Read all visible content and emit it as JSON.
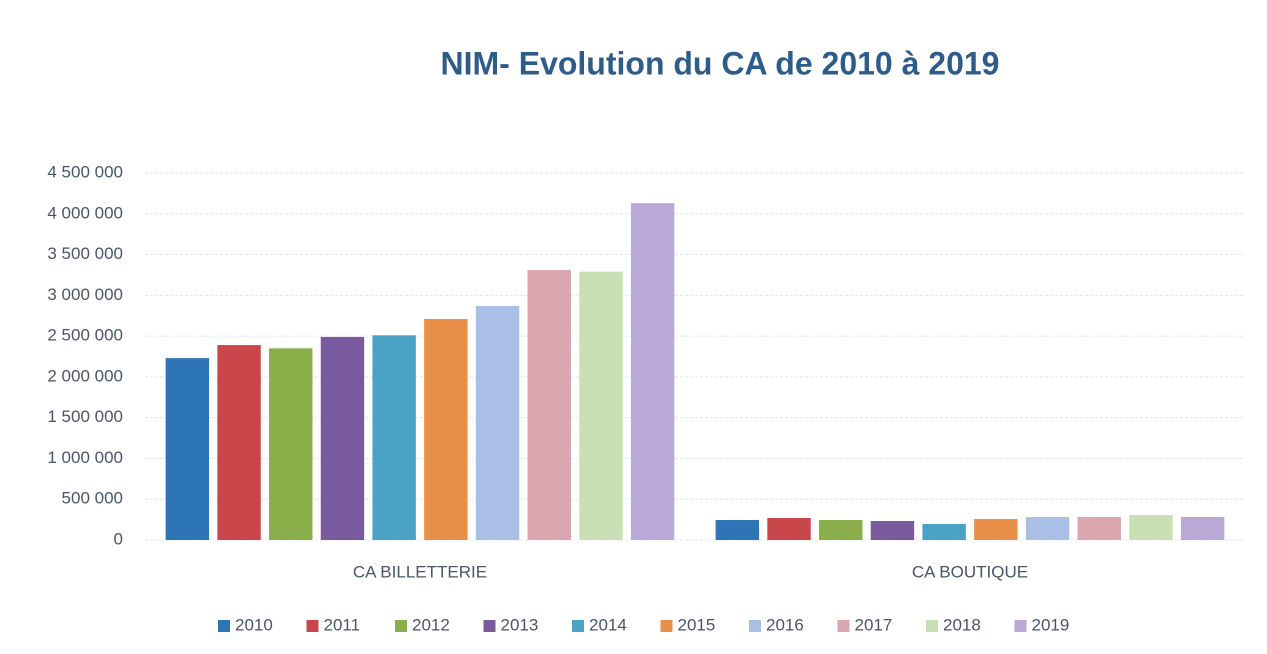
{
  "chart_data": {
    "type": "bar",
    "title": "NIM- Evolution du CA de 2010 à 2019",
    "categories": [
      "CA BILLETTERIE",
      "CA BOUTIQUE"
    ],
    "series": [
      {
        "name": "2010",
        "color": "#2e75b6",
        "values": [
          2230000,
          245000
        ]
      },
      {
        "name": "2011",
        "color": "#c9474a",
        "values": [
          2390000,
          270000
        ]
      },
      {
        "name": "2012",
        "color": "#8aae4a",
        "values": [
          2350000,
          245000
        ]
      },
      {
        "name": "2013",
        "color": "#7a5a9e",
        "values": [
          2490000,
          233000
        ]
      },
      {
        "name": "2014",
        "color": "#4aa3c4",
        "values": [
          2510000,
          196000
        ]
      },
      {
        "name": "2015",
        "color": "#e8904a",
        "values": [
          2710000,
          257000
        ]
      },
      {
        "name": "2016",
        "color": "#a9bfe6",
        "values": [
          2870000,
          282000
        ]
      },
      {
        "name": "2017",
        "color": "#dca6b0",
        "values": [
          3310000,
          282000
        ]
      },
      {
        "name": "2018",
        "color": "#c9e0b5",
        "values": [
          3290000,
          306000
        ]
      },
      {
        "name": "2019",
        "color": "#b9a9d6",
        "values": [
          4130000,
          282000
        ]
      }
    ],
    "ylim": [
      0,
      4500000
    ],
    "yticks": [
      0,
      {
        "value": 500000,
        "label": "500 000"
      },
      {
        "value": 1000000,
        "label": "1 000 000"
      },
      {
        "value": 1500000,
        "label": "1 500 000"
      },
      {
        "value": 2000000,
        "label": "2 000 000"
      },
      {
        "value": 2500000,
        "label": "2 500 000"
      },
      {
        "value": 3000000,
        "label": "3 000 000"
      },
      {
        "value": 3500000,
        "label": "3 500 000"
      },
      {
        "value": 4000000,
        "label": "4 000 000"
      },
      {
        "value": 4500000,
        "label": "4 500 000"
      }
    ],
    "grid": true,
    "legend": "bottom"
  }
}
